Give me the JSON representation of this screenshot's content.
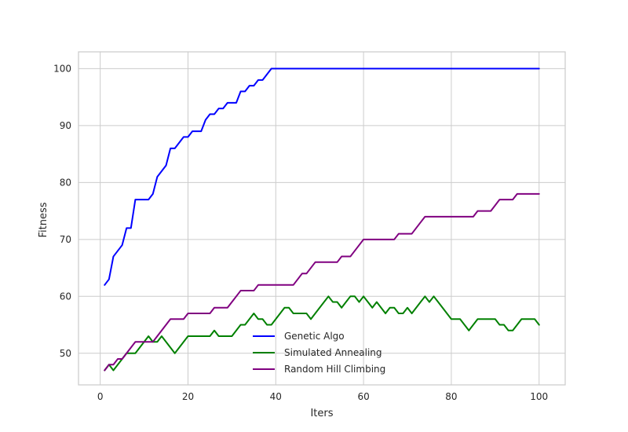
{
  "chart_data": {
    "type": "line",
    "title": "",
    "xlabel": "Iters",
    "ylabel": "Fitness",
    "xlim": [
      -4.95,
      105.95
    ],
    "ylim": [
      44.45,
      102.95
    ],
    "xticks": [
      0,
      20,
      40,
      60,
      80,
      100
    ],
    "yticks": [
      50,
      60,
      70,
      80,
      90,
      100
    ],
    "grid": true,
    "legend_position": "bottom-center",
    "x": [
      1,
      2,
      3,
      4,
      5,
      6,
      7,
      8,
      9,
      10,
      11,
      12,
      13,
      14,
      15,
      16,
      17,
      18,
      19,
      20,
      21,
      22,
      23,
      24,
      25,
      26,
      27,
      28,
      29,
      30,
      31,
      32,
      33,
      34,
      35,
      36,
      37,
      38,
      39,
      40,
      41,
      42,
      43,
      44,
      45,
      46,
      47,
      48,
      49,
      50,
      51,
      52,
      53,
      54,
      55,
      56,
      57,
      58,
      59,
      60,
      61,
      62,
      63,
      64,
      65,
      66,
      67,
      68,
      69,
      70,
      71,
      72,
      73,
      74,
      75,
      76,
      77,
      78,
      79,
      80,
      81,
      82,
      83,
      84,
      85,
      86,
      87,
      88,
      89,
      90,
      91,
      92,
      93,
      94,
      95,
      96,
      97,
      98,
      99,
      100
    ],
    "series": [
      {
        "name": "Genetic Algo",
        "color": "#0000ff",
        "values": [
          62,
          63,
          67,
          68,
          69,
          72,
          72,
          77,
          77,
          77,
          77,
          78,
          81,
          82,
          83,
          86,
          86,
          87,
          88,
          88,
          89,
          89,
          89,
          91,
          92,
          92,
          93,
          93,
          94,
          94,
          94,
          96,
          96,
          97,
          97,
          98,
          98,
          99,
          100,
          100,
          100,
          100,
          100,
          100,
          100,
          100,
          100,
          100,
          100,
          100,
          100,
          100,
          100,
          100,
          100,
          100,
          100,
          100,
          100,
          100,
          100,
          100,
          100,
          100,
          100,
          100,
          100,
          100,
          100,
          100,
          100,
          100,
          100,
          100,
          100,
          100,
          100,
          100,
          100,
          100,
          100,
          100,
          100,
          100,
          100,
          100,
          100,
          100,
          100,
          100,
          100,
          100,
          100,
          100,
          100,
          100,
          100,
          100,
          100,
          100
        ]
      },
      {
        "name": "Simulated Annealing",
        "color": "#008000",
        "values": [
          47,
          48,
          47,
          48,
          49,
          50,
          50,
          50,
          51,
          52,
          53,
          52,
          52,
          53,
          52,
          51,
          50,
          51,
          52,
          53,
          53,
          53,
          53,
          53,
          53,
          54,
          53,
          53,
          53,
          53,
          54,
          55,
          55,
          56,
          57,
          56,
          56,
          55,
          55,
          56,
          57,
          58,
          58,
          57,
          57,
          57,
          57,
          56,
          57,
          58,
          59,
          60,
          59,
          59,
          58,
          59,
          60,
          60,
          59,
          60,
          59,
          58,
          59,
          58,
          57,
          58,
          58,
          57,
          57,
          58,
          57,
          58,
          59,
          60,
          59,
          60,
          59,
          58,
          57,
          56,
          56,
          56,
          55,
          54,
          55,
          56,
          56,
          56,
          56,
          56,
          55,
          55,
          54,
          54,
          55,
          56,
          56,
          56,
          56,
          55
        ]
      },
      {
        "name": "Random Hill Climbing",
        "color": "#800080",
        "values": [
          47,
          48,
          48,
          49,
          49,
          50,
          51,
          52,
          52,
          52,
          52,
          52,
          53,
          54,
          55,
          56,
          56,
          56,
          56,
          57,
          57,
          57,
          57,
          57,
          57,
          58,
          58,
          58,
          58,
          59,
          60,
          61,
          61,
          61,
          61,
          62,
          62,
          62,
          62,
          62,
          62,
          62,
          62,
          62,
          63,
          64,
          64,
          65,
          66,
          66,
          66,
          66,
          66,
          66,
          67,
          67,
          67,
          68,
          69,
          70,
          70,
          70,
          70,
          70,
          70,
          70,
          70,
          71,
          71,
          71,
          71,
          72,
          73,
          74,
          74,
          74,
          74,
          74,
          74,
          74,
          74,
          74,
          74,
          74,
          74,
          75,
          75,
          75,
          75,
          76,
          77,
          77,
          77,
          77,
          78,
          78,
          78,
          78,
          78,
          78
        ]
      }
    ]
  }
}
